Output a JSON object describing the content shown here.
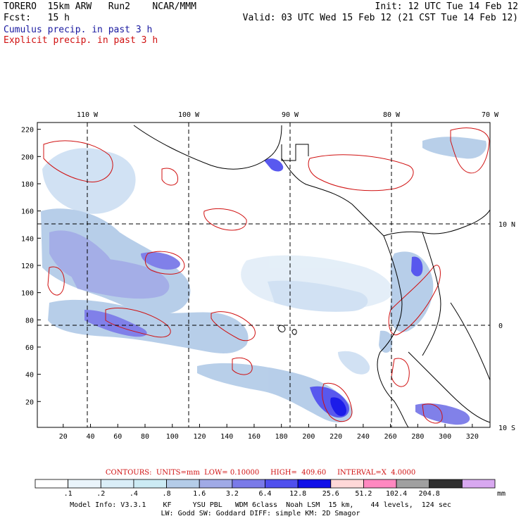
{
  "header": {
    "model": "TORERO  15km ARW   Run2    NCAR/MMM",
    "init": "Init: 12 UTC Tue 14 Feb 12",
    "fcst": "Fcst:   15 h",
    "valid": "Valid: 03 UTC Wed 15 Feb 12 (21 CST Tue 14 Feb 12)",
    "cumulus_label": "Cumulus precip. in past 3 h",
    "explicit_label": "Explicit precip. in past 3 h",
    "cumulus_color": "#1a1aa0",
    "explicit_color": "#d01010"
  },
  "map": {
    "lon_labels": [
      "110 W",
      "100 W",
      "90 W",
      "80 W",
      "70 W"
    ],
    "lat_labels": [
      "10 N",
      "0",
      "10 S"
    ],
    "x_ticks": [
      "20",
      "40",
      "60",
      "80",
      "100",
      "120",
      "140",
      "160",
      "180",
      "200",
      "220",
      "240",
      "260",
      "280",
      "300",
      "320"
    ],
    "y_ticks": [
      "20",
      "40",
      "60",
      "80",
      "100",
      "120",
      "140",
      "160",
      "180",
      "200",
      "220"
    ],
    "grid_x_range": [
      1,
      333
    ],
    "grid_y_range": [
      1,
      225
    ]
  },
  "contours": {
    "text": "CONTOURS:  UNITS=mm  LOW= 0.10000     HIGH=  409.60     INTERVAL=X  4.0000"
  },
  "colorbar": {
    "labels": [
      ".1",
      ".2",
      ".4",
      ".8",
      "1.6",
      "3.2",
      "6.4",
      "12.8",
      "25.6",
      "51.2",
      "102.4",
      "204.8"
    ],
    "colors": [
      "#ffffff",
      "#eaf4fb",
      "#daeef8",
      "#ccebf4",
      "#b4cce8",
      "#a0aae6",
      "#7a7ae8",
      "#5050ee",
      "#1010e8",
      "#ffd8d8",
      "#ff88c0",
      "#a0a0a0",
      "#303030",
      "#d8a8f0"
    ],
    "units": "mm"
  },
  "model_info": {
    "line1": "Model Info: V3.3.1    KF     YSU PBL   WDM 6class  Noah LSM  15 km,    44 levels,  124 sec",
    "line2": "LW: Godd SW: Goddard DIFF: simple KM: 2D Smagor"
  }
}
